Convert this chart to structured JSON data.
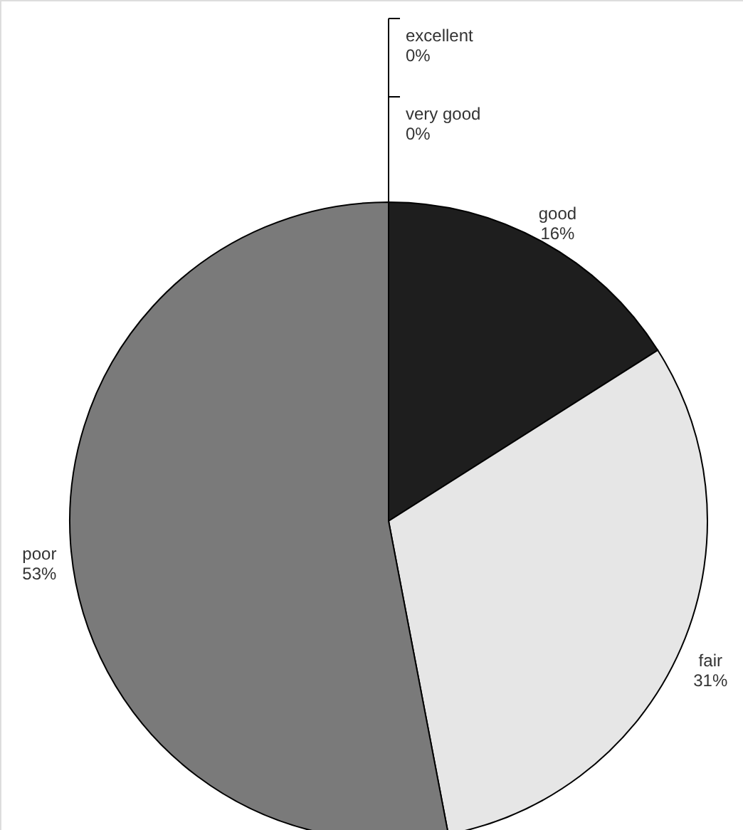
{
  "chart_data": {
    "type": "pie",
    "categories": [
      "excellent",
      "very good",
      "good",
      "fair",
      "poor"
    ],
    "values": [
      0,
      0,
      16,
      31,
      53
    ],
    "value_labels": [
      "0%",
      "0%",
      "16%",
      "31%",
      "53%"
    ],
    "colors": [
      "#ffffff",
      "#c0c0c0",
      "#1e1e1e",
      "#e6e6e6",
      "#7a7a7a"
    ]
  }
}
